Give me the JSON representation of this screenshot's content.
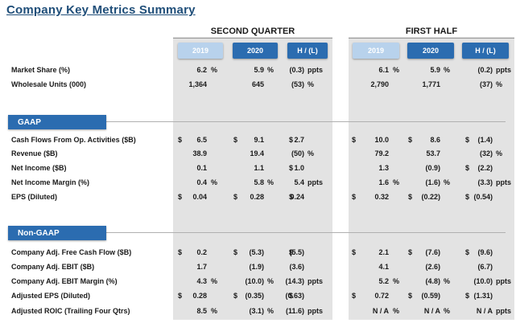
{
  "title": "Company Key Metrics Summary",
  "groups": {
    "q2": "SECOND QUARTER",
    "h1": "FIRST HALF"
  },
  "headers": [
    "2019",
    "2020",
    "H / (L)",
    "2019",
    "2020",
    "H / (L)"
  ],
  "sections": {
    "gaap": "GAAP",
    "nongaap": "Non-GAAP"
  },
  "rows": [
    {
      "label": "Market Share (%)",
      "cells": [
        {
          "d": "",
          "v": "6.2",
          "s": "%"
        },
        {
          "d": "",
          "v": "5.9",
          "s": "%"
        },
        {
          "d": "",
          "v": "(0.3)",
          "s": "ppts"
        },
        {
          "d": "",
          "v": "6.1",
          "s": "%"
        },
        {
          "d": "",
          "v": "5.9",
          "s": "%"
        },
        {
          "d": "",
          "v": "(0.2)",
          "s": "ppts"
        }
      ]
    },
    {
      "label": "Wholesale Units (000)",
      "cells": [
        {
          "d": "",
          "v": "1,364",
          "s": ""
        },
        {
          "d": "",
          "v": "645",
          "s": ""
        },
        {
          "d": "",
          "v": "(53)",
          "s": "%"
        },
        {
          "d": "",
          "v": "2,790",
          "s": ""
        },
        {
          "d": "",
          "v": "1,771",
          "s": ""
        },
        {
          "d": "",
          "v": "(37)",
          "s": "%"
        }
      ]
    },
    {
      "label": "Cash Flows From Op. Activities ($B)",
      "cells": [
        {
          "d": "$",
          "v": "6.5",
          "s": ""
        },
        {
          "d": "$",
          "v": "9.1",
          "s": ""
        },
        {
          "d": "$",
          "v": "2.7",
          "s": ""
        },
        {
          "d": "$",
          "v": "10.0",
          "s": ""
        },
        {
          "d": "$",
          "v": "8.6",
          "s": ""
        },
        {
          "d": "$",
          "v": "(1.4)",
          "s": ""
        }
      ]
    },
    {
      "label": "Revenue ($B)",
      "cells": [
        {
          "d": "",
          "v": "38.9",
          "s": ""
        },
        {
          "d": "",
          "v": "19.4",
          "s": ""
        },
        {
          "d": "",
          "v": "(50)",
          "s": "%"
        },
        {
          "d": "",
          "v": "79.2",
          "s": ""
        },
        {
          "d": "",
          "v": "53.7",
          "s": ""
        },
        {
          "d": "",
          "v": "(32)",
          "s": "%"
        }
      ]
    },
    {
      "label": "Net Income ($B)",
      "cells": [
        {
          "d": "",
          "v": "0.1",
          "s": ""
        },
        {
          "d": "",
          "v": "1.1",
          "s": ""
        },
        {
          "d": "$",
          "v": "1.0",
          "s": ""
        },
        {
          "d": "",
          "v": "1.3",
          "s": ""
        },
        {
          "d": "",
          "v": "(0.9)",
          "s": ""
        },
        {
          "d": "$",
          "v": "(2.2)",
          "s": ""
        }
      ]
    },
    {
      "label": "Net Income Margin (%)",
      "cells": [
        {
          "d": "",
          "v": "0.4",
          "s": "%"
        },
        {
          "d": "",
          "v": "5.8",
          "s": "%"
        },
        {
          "d": "",
          "v": "5.4",
          "s": "ppts"
        },
        {
          "d": "",
          "v": "1.6",
          "s": "%"
        },
        {
          "d": "",
          "v": "(1.6)",
          "s": "%"
        },
        {
          "d": "",
          "v": "(3.3)",
          "s": "ppts"
        }
      ]
    },
    {
      "label": "EPS (Diluted)",
      "cells": [
        {
          "d": "$",
          "v": "0.04",
          "s": ""
        },
        {
          "d": "$",
          "v": "0.28",
          "s": ""
        },
        {
          "d": "$",
          "v": "0.24",
          "s": ""
        },
        {
          "d": "$",
          "v": "0.32",
          "s": ""
        },
        {
          "d": "$",
          "v": "(0.22)",
          "s": ""
        },
        {
          "d": "$",
          "v": "(0.54)",
          "s": ""
        }
      ]
    },
    {
      "label": "Company Adj. Free Cash Flow ($B)",
      "cells": [
        {
          "d": "$",
          "v": "0.2",
          "s": ""
        },
        {
          "d": "$",
          "v": "(5.3)",
          "s": ""
        },
        {
          "d": "$",
          "v": "(5.5)",
          "s": ""
        },
        {
          "d": "$",
          "v": "2.1",
          "s": ""
        },
        {
          "d": "$",
          "v": "(7.6)",
          "s": ""
        },
        {
          "d": "$",
          "v": "(9.6)",
          "s": ""
        }
      ]
    },
    {
      "label": "Company Adj. EBIT ($B)",
      "cells": [
        {
          "d": "",
          "v": "1.7",
          "s": ""
        },
        {
          "d": "",
          "v": "(1.9)",
          "s": ""
        },
        {
          "d": "",
          "v": "(3.6)",
          "s": ""
        },
        {
          "d": "",
          "v": "4.1",
          "s": ""
        },
        {
          "d": "",
          "v": "(2.6)",
          "s": ""
        },
        {
          "d": "",
          "v": "(6.7)",
          "s": ""
        }
      ]
    },
    {
      "label": "Company Adj. EBIT Margin (%)",
      "cells": [
        {
          "d": "",
          "v": "4.3",
          "s": "%"
        },
        {
          "d": "",
          "v": "(10.0)",
          "s": "%"
        },
        {
          "d": "",
          "v": "(14.3)",
          "s": "ppts"
        },
        {
          "d": "",
          "v": "5.2",
          "s": "%"
        },
        {
          "d": "",
          "v": "(4.8)",
          "s": "%"
        },
        {
          "d": "",
          "v": "(10.0)",
          "s": "ppts"
        }
      ]
    },
    {
      "label": "Adjusted EPS (Diluted)",
      "cells": [
        {
          "d": "$",
          "v": "0.28",
          "s": ""
        },
        {
          "d": "$",
          "v": "(0.35)",
          "s": ""
        },
        {
          "d": "$",
          "v": "(0.63)",
          "s": ""
        },
        {
          "d": "$",
          "v": "0.72",
          "s": ""
        },
        {
          "d": "$",
          "v": "(0.59)",
          "s": ""
        },
        {
          "d": "$",
          "v": "(1.31)",
          "s": ""
        }
      ]
    },
    {
      "label": "Adjusted ROIC (Trailing Four Qtrs)",
      "cells": [
        {
          "d": "",
          "v": "8.5",
          "s": "%"
        },
        {
          "d": "",
          "v": "(3.1)",
          "s": "%"
        },
        {
          "d": "",
          "v": "(11.6)",
          "s": "ppts"
        },
        {
          "d": "",
          "v": "N / A",
          "s": "%"
        },
        {
          "d": "",
          "v": "N / A",
          "s": "%"
        },
        {
          "d": "",
          "v": "N / A",
          "s": "ppts"
        }
      ]
    }
  ]
}
